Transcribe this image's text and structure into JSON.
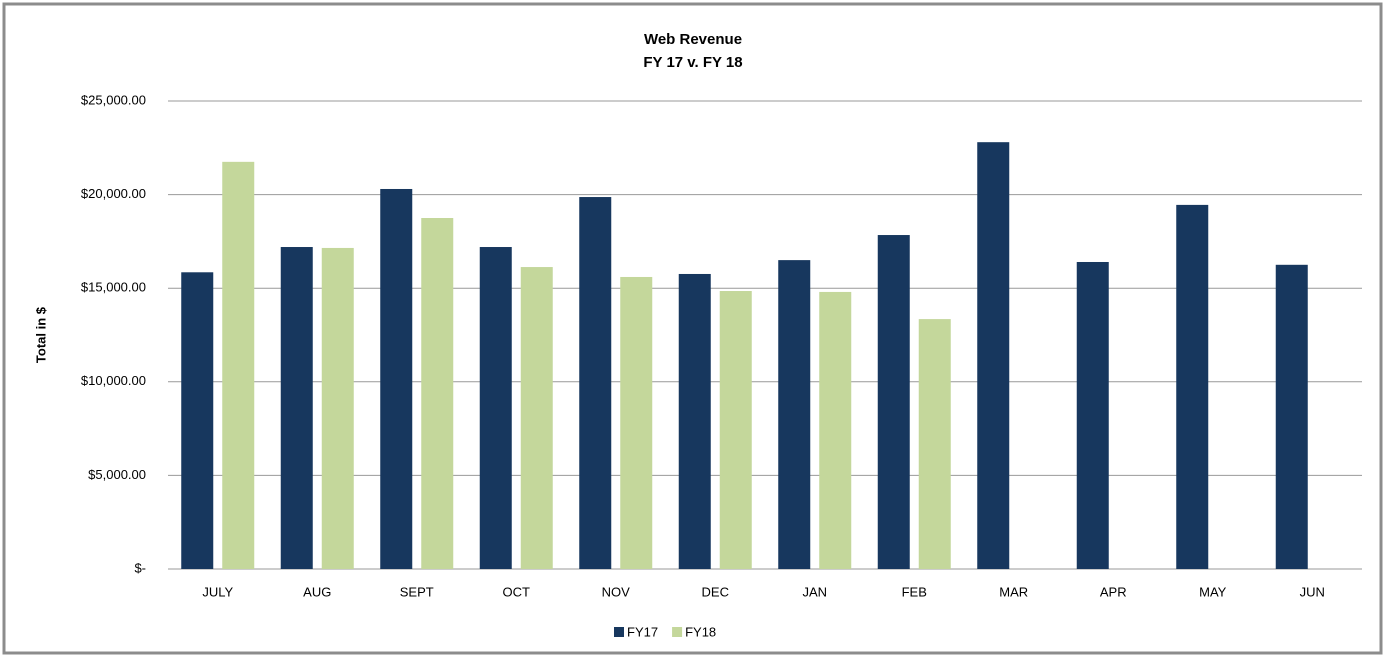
{
  "chart_data": {
    "type": "bar",
    "title": "Web Revenue",
    "subtitle": "FY 17 v. FY 18",
    "y_label": "Total in $",
    "categories": [
      "JULY",
      "AUG",
      "SEPT",
      "OCT",
      "NOV",
      "DEC",
      "JAN",
      "FEB",
      "MAR",
      "APR",
      "MAY",
      "JUN"
    ],
    "series": [
      {
        "name": "FY17",
        "color": "#17375e",
        "values": [
          15850,
          17200,
          20300,
          17200,
          19870,
          15760,
          16500,
          17840,
          22800,
          16400,
          19450,
          16250
        ]
      },
      {
        "name": "FY18",
        "color": "#c4d79b",
        "values": [
          21750,
          17150,
          18750,
          16130,
          15600,
          14850,
          14800,
          13350,
          null,
          null,
          null,
          null
        ]
      }
    ],
    "ylim": [
      0,
      25000
    ],
    "yticks": [
      {
        "value": 0,
        "label": "$-"
      },
      {
        "value": 5000,
        "label": "$5,000.00"
      },
      {
        "value": 10000,
        "label": "$10,000.00"
      },
      {
        "value": 15000,
        "label": "$15,000.00"
      },
      {
        "value": 20000,
        "label": "$20,000.00"
      },
      {
        "value": 25000,
        "label": "$25,000.00"
      }
    ],
    "grid": true,
    "legend": "bottom"
  }
}
